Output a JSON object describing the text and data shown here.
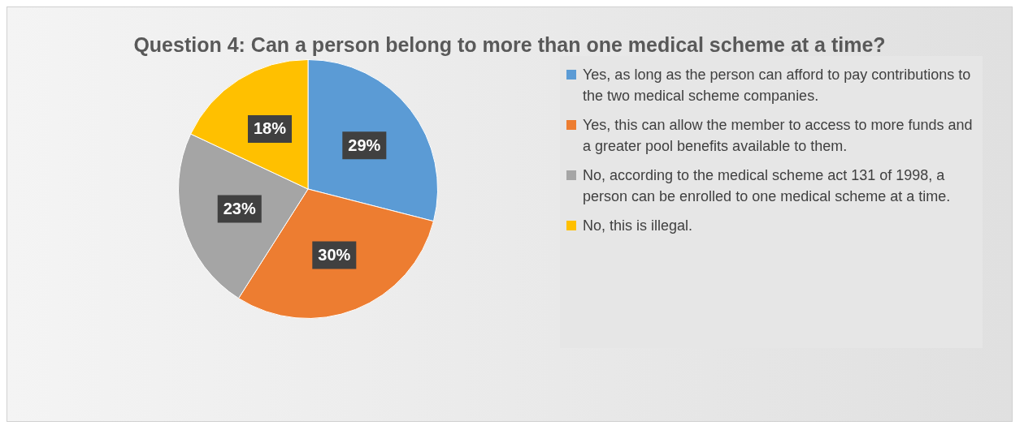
{
  "chart_data": {
    "type": "pie",
    "title": "Question 4: Can a person belong to more than one medical scheme at a time?",
    "categories": [
      "Yes, as long as the person can afford to pay contributions to the two medical scheme companies.",
      "Yes, this can allow the member to access to more funds and a greater pool benefits available to them.",
      "No, according to the medical scheme act 131 of 1998, a person can be enrolled to one medical scheme at a time.",
      "No, this is illegal."
    ],
    "values": [
      29,
      30,
      23,
      18
    ],
    "colors": [
      "#5b9bd5",
      "#ed7d31",
      "#a5a5a5",
      "#ffc000"
    ],
    "value_labels": [
      "29%",
      "30%",
      "23%",
      "18%"
    ],
    "legend": "right"
  }
}
